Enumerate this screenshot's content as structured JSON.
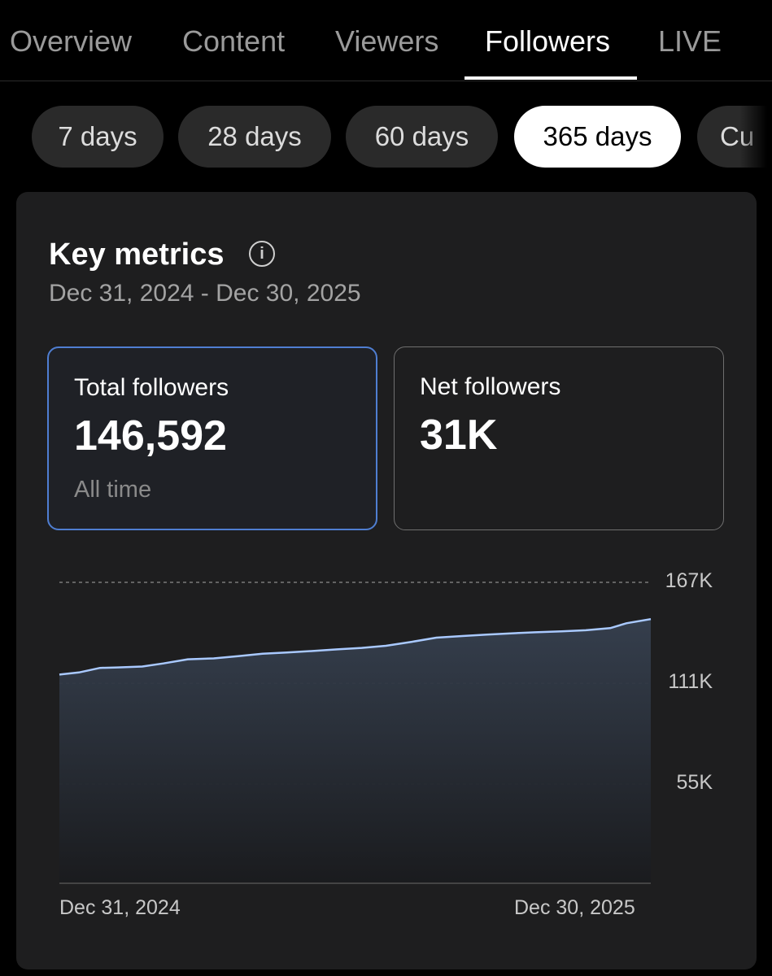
{
  "tabs": [
    {
      "label": "Overview",
      "active": false
    },
    {
      "label": "Content",
      "active": false
    },
    {
      "label": "Viewers",
      "active": false
    },
    {
      "label": "Followers",
      "active": true
    },
    {
      "label": "LIVE",
      "active": false
    }
  ],
  "periods": [
    {
      "label": "7 days",
      "active": false
    },
    {
      "label": "28 days",
      "active": false
    },
    {
      "label": "60 days",
      "active": false
    },
    {
      "label": "365 days",
      "active": true
    },
    {
      "label": "Cu",
      "active": false
    }
  ],
  "card": {
    "title": "Key metrics",
    "info_icon": "info-icon",
    "date_range": "Dec 31, 2024 - Dec 30, 2025"
  },
  "metrics": [
    {
      "label": "Total followers",
      "value": "146,592",
      "sub": "All time",
      "selected": true
    },
    {
      "label": "Net followers",
      "value": "31K",
      "sub": "",
      "selected": false
    }
  ],
  "colors": {
    "accent_border": "#4f7ed1",
    "line": "#a9c9ff",
    "background": "#000000",
    "card": "#1e1e1f"
  },
  "chart_data": {
    "type": "area",
    "x_start_label": "Dec 31, 2024",
    "x_end_label": "Dec 30, 2025",
    "y_tick_labels": [
      "167K",
      "111K",
      "55K"
    ],
    "y_ticks": [
      167000,
      111000,
      55000
    ],
    "ylim": [
      0,
      167000
    ],
    "grid": true,
    "series": [
      {
        "x": [
          "2024-12-31",
          "2025-01-12",
          "2025-01-25",
          "2025-02-05",
          "2025-02-20",
          "2025-03-05",
          "2025-03-20",
          "2025-04-05",
          "2025-04-20",
          "2025-05-05",
          "2025-05-20",
          "2025-06-05",
          "2025-06-20",
          "2025-07-05",
          "2025-07-20",
          "2025-08-05",
          "2025-08-20",
          "2025-09-05",
          "2025-09-20",
          "2025-10-05",
          "2025-10-20",
          "2025-11-05",
          "2025-11-20",
          "2025-12-05",
          "2025-12-15",
          "2025-12-30"
        ],
        "values": [
          115800,
          117000,
          119500,
          119800,
          120300,
          122000,
          124300,
          124800,
          126000,
          127400,
          128100,
          128900,
          129800,
          130600,
          131800,
          134000,
          136300,
          137200,
          138000,
          138700,
          139300,
          139800,
          140400,
          141600,
          144300,
          146592
        ]
      }
    ]
  }
}
